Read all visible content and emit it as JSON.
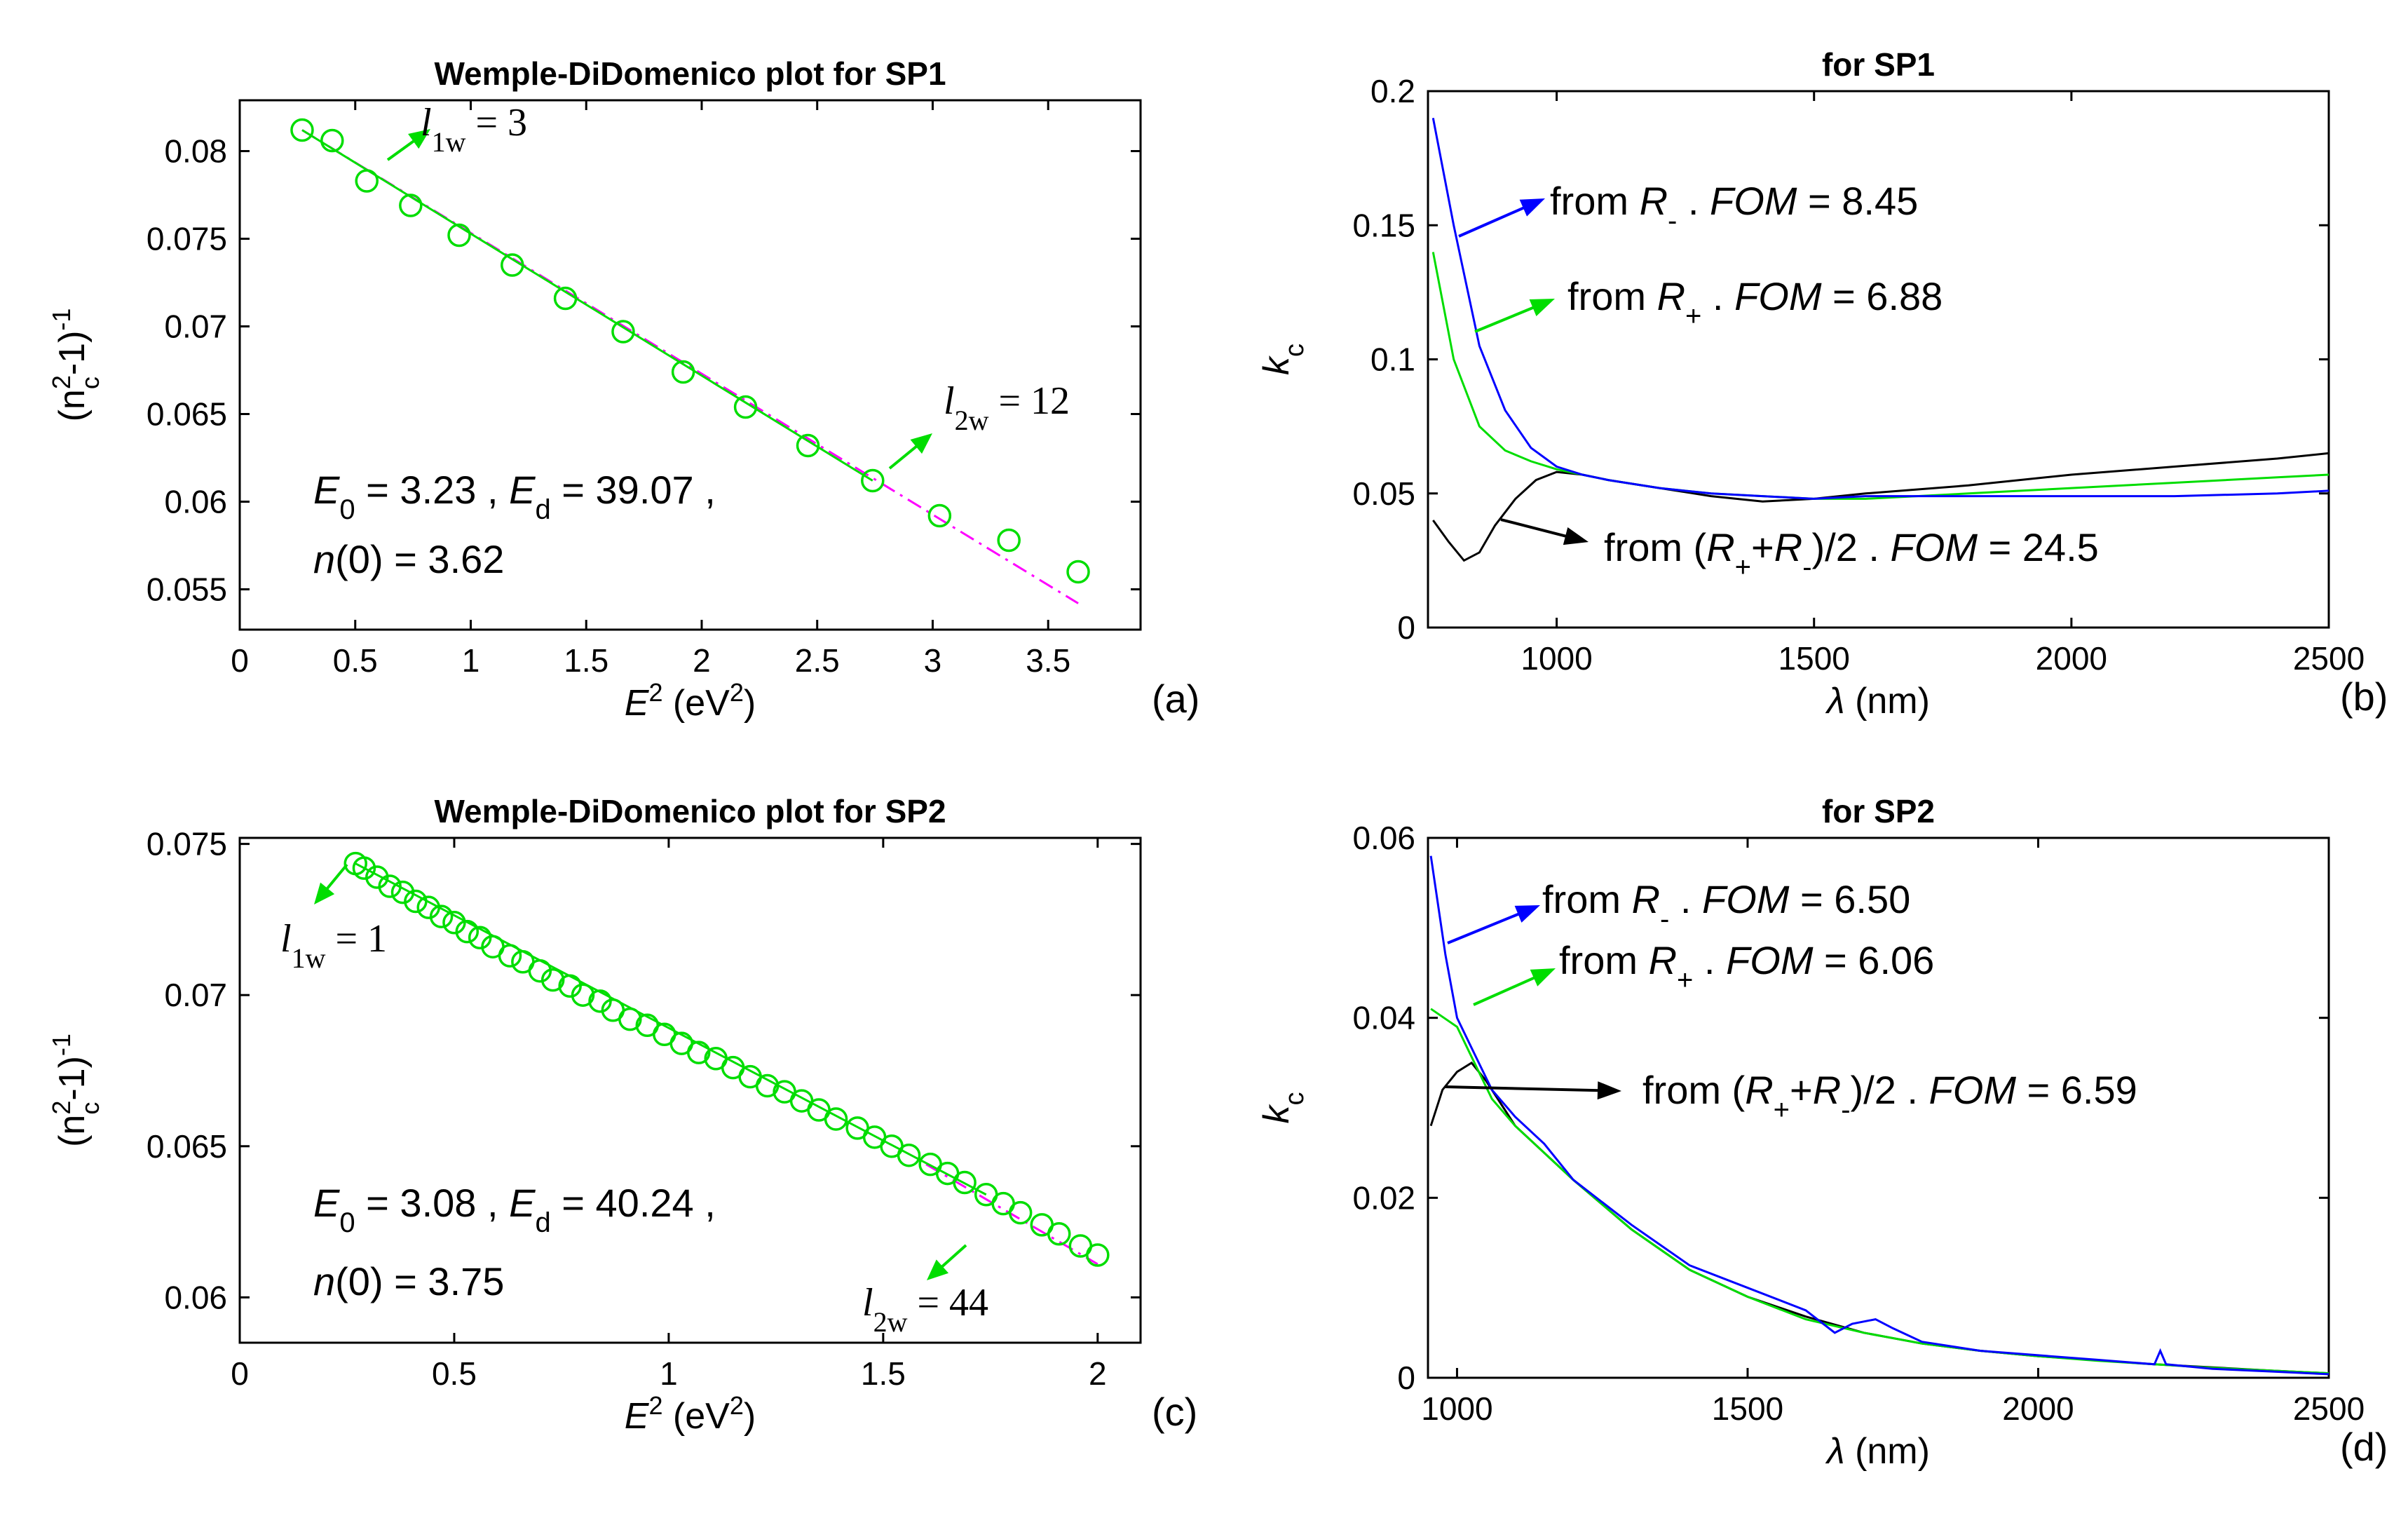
{
  "chart_data": [
    {
      "panel": "(a)",
      "type": "scatter",
      "title": "Wemple-DiDomenico plot for SP1",
      "xlabel": "E^2 (eV^2)",
      "ylabel": "(n_c^2-1)^-1",
      "xlim": [
        0,
        3.9
      ],
      "ylim": [
        0.0527,
        0.0829
      ],
      "xticks": [
        0,
        0.5,
        1,
        1.5,
        2,
        2.5,
        3,
        3.5
      ],
      "yticks": [
        0.055,
        0.06,
        0.065,
        0.07,
        0.075,
        0.08
      ],
      "xtick_labels": [
        "0",
        "0.5",
        "1",
        "1.5",
        "2",
        "2.5",
        "3",
        "3.5"
      ],
      "ytick_labels": [
        "0.055",
        "0.06",
        "0.065",
        "0.07",
        "0.075",
        "0.08"
      ],
      "points_x": [
        0.27,
        0.4,
        0.55,
        0.74,
        0.95,
        1.18,
        1.41,
        1.66,
        1.92,
        2.19,
        2.46,
        2.74,
        3.03,
        3.33,
        3.63
      ],
      "points_y": [
        0.0812,
        0.0806,
        0.0783,
        0.0769,
        0.0752,
        0.0735,
        0.0716,
        0.0697,
        0.0674,
        0.0654,
        0.0632,
        0.0612,
        0.0592,
        0.0578,
        0.056
      ],
      "fit_line": {
        "x": [
          0.27,
          2.74
        ],
        "y": [
          0.0812,
          0.0612
        ]
      },
      "extrap_line": {
        "x": [
          0.27,
          3.63
        ],
        "y": [
          0.0812,
          0.0542
        ]
      },
      "l1w": {
        "label": "l",
        "sub": "1w",
        "value": " = 3"
      },
      "l2w": {
        "label": "l",
        "sub": "2w",
        "value": " = 12"
      },
      "params": {
        "E0_sym": "E",
        "E0_sub": "0",
        "E0_val": " = 3.23 , ",
        "Ed_sym": "E",
        "Ed_sub": "d",
        "Ed_val": " = 39.07 ,",
        "n0_sym": "n",
        "n0_val": "(0) = 3.62"
      }
    },
    {
      "panel": "(b)",
      "type": "line",
      "title": "for SP1",
      "xlabel": "λ (nm)",
      "ylabel": "k_c",
      "xlim": [
        750,
        2500
      ],
      "ylim": [
        0,
        0.2
      ],
      "xticks": [
        1000,
        1500,
        2000,
        2500
      ],
      "yticks": [
        0,
        0.05,
        0.1,
        0.15,
        0.2
      ],
      "xtick_labels": [
        "1000",
        "1500",
        "2000",
        "2500"
      ],
      "ytick_labels": [
        "0",
        "0.05",
        "0.1",
        "0.15",
        "0.2"
      ],
      "series": [
        {
          "name": "from R-",
          "color": "#0000ff",
          "x": [
            760,
            800,
            850,
            900,
            950,
            1000,
            1050,
            1100,
            1200,
            1300,
            1400,
            1500,
            1600,
            1800,
            2000,
            2200,
            2400,
            2500
          ],
          "y": [
            0.19,
            0.15,
            0.105,
            0.081,
            0.067,
            0.06,
            0.057,
            0.055,
            0.052,
            0.05,
            0.049,
            0.048,
            0.049,
            0.049,
            0.049,
            0.049,
            0.05,
            0.051
          ]
        },
        {
          "name": "from R+",
          "color": "#00dd00",
          "x": [
            760,
            800,
            850,
            900,
            950,
            1000,
            1050,
            1100,
            1200,
            1300,
            1400,
            1500,
            1600,
            1800,
            2000,
            2200,
            2400,
            2500
          ],
          "y": [
            0.14,
            0.1,
            0.075,
            0.066,
            0.062,
            0.059,
            0.057,
            0.055,
            0.052,
            0.05,
            0.049,
            0.048,
            0.048,
            0.05,
            0.052,
            0.054,
            0.056,
            0.057
          ]
        },
        {
          "name": "from (R+ + R-)/2",
          "color": "#000000",
          "x": [
            760,
            790,
            820,
            850,
            880,
            920,
            960,
            1000,
            1050,
            1100,
            1200,
            1300,
            1400,
            1500,
            1600,
            1800,
            2000,
            2200,
            2400,
            2500
          ],
          "y": [
            0.04,
            0.032,
            0.025,
            0.028,
            0.038,
            0.048,
            0.055,
            0.058,
            0.057,
            0.055,
            0.052,
            0.049,
            0.047,
            0.048,
            0.05,
            0.053,
            0.057,
            0.06,
            0.063,
            0.065
          ]
        }
      ],
      "annotations": [
        {
          "prefix": "from ",
          "sym": "R",
          "sub": "-",
          "mid": " . ",
          "fom": "FOM",
          "val": " = 8.45",
          "color": "#0000ff"
        },
        {
          "prefix": "from ",
          "sym": "R",
          "sub": "+",
          "mid": " . ",
          "fom": "FOM",
          "val": " = 6.88",
          "color": "#00dd00"
        },
        {
          "prefix": "from (",
          "sym": "R",
          "sub": "+",
          "plus": "+",
          "sym2": "R",
          "sub2": "-",
          "tail": ")/2 . ",
          "fom": "FOM",
          "val": " = 24.5",
          "color": "#000000"
        }
      ]
    },
    {
      "panel": "(c)",
      "type": "scatter",
      "title": "Wemple-DiDomenico plot for SP2",
      "xlabel": "E^2 (eV^2)",
      "ylabel": "(n_c^2-1)^-1",
      "xlim": [
        0,
        2.1
      ],
      "ylim": [
        0.0585,
        0.0752
      ],
      "xticks": [
        0,
        0.5,
        1,
        1.5,
        2
      ],
      "yticks": [
        0.06,
        0.065,
        0.07,
        0.075
      ],
      "xtick_labels": [
        "0",
        "0.5",
        "1",
        "1.5",
        "2"
      ],
      "ytick_labels": [
        "0.06",
        "0.065",
        "0.07",
        "0.075"
      ],
      "points_x": [
        0.27,
        0.29,
        0.32,
        0.35,
        0.38,
        0.41,
        0.44,
        0.47,
        0.5,
        0.53,
        0.56,
        0.59,
        0.63,
        0.66,
        0.7,
        0.73,
        0.77,
        0.8,
        0.84,
        0.87,
        0.91,
        0.95,
        0.99,
        1.03,
        1.07,
        1.11,
        1.15,
        1.19,
        1.23,
        1.27,
        1.31,
        1.35,
        1.39,
        1.44,
        1.48,
        1.52,
        1.56,
        1.61,
        1.65,
        1.69,
        1.74,
        1.78,
        1.82,
        1.87,
        1.91,
        1.96,
        2.0
      ],
      "points_y": [
        0.07435,
        0.0742,
        0.0739,
        0.0736,
        0.0734,
        0.0731,
        0.0729,
        0.0726,
        0.0724,
        0.0721,
        0.0719,
        0.0716,
        0.0713,
        0.0711,
        0.0708,
        0.0705,
        0.0703,
        0.07,
        0.0698,
        0.0695,
        0.0692,
        0.069,
        0.0687,
        0.0684,
        0.0681,
        0.0679,
        0.0676,
        0.0673,
        0.067,
        0.0668,
        0.0665,
        0.0662,
        0.0659,
        0.0656,
        0.0653,
        0.065,
        0.0647,
        0.0644,
        0.0641,
        0.0638,
        0.0634,
        0.0631,
        0.0628,
        0.0624,
        0.0621,
        0.0617,
        0.0614
      ],
      "fit_line": {
        "x": [
          0.27,
          1.74
        ],
        "y": [
          0.07435,
          0.0634
        ]
      },
      "extrap_line": {
        "x": [
          1.6,
          2.0
        ],
        "y": [
          0.0644,
          0.0611
        ]
      },
      "l1w": {
        "label": "l",
        "sub": "1w",
        "value": " = 1"
      },
      "l2w": {
        "label": "l",
        "sub": "2w",
        "value": " = 44"
      },
      "params": {
        "E0_sym": "E",
        "E0_sub": "0",
        "E0_val": " = 3.08 , ",
        "Ed_sym": "E",
        "Ed_sub": "d",
        "Ed_val": " = 40.24 ,",
        "n0_sym": "n",
        "n0_val": "(0) = 3.75"
      }
    },
    {
      "panel": "(d)",
      "type": "line",
      "title": "for SP2",
      "xlabel": "λ (nm)",
      "ylabel": "k_c",
      "xlim": [
        950,
        2500
      ],
      "ylim": [
        0,
        0.06
      ],
      "xticks": [
        1000,
        1500,
        2000,
        2500
      ],
      "yticks": [
        0,
        0.02,
        0.04,
        0.06
      ],
      "xtick_labels": [
        "1000",
        "1500",
        "2000",
        "2500"
      ],
      "ytick_labels": [
        "0",
        "0.02",
        "0.04",
        "0.06"
      ],
      "series": [
        {
          "name": "from R-",
          "color": "#0000ff",
          "x": [
            955,
            980,
            1000,
            1030,
            1060,
            1100,
            1150,
            1200,
            1300,
            1400,
            1500,
            1600,
            1650,
            1680,
            1720,
            1750,
            1800,
            1900,
            2000,
            2100,
            2200,
            2210,
            2220,
            2300,
            2400,
            2500
          ],
          "y": [
            0.058,
            0.047,
            0.04,
            0.036,
            0.032,
            0.029,
            0.026,
            0.022,
            0.017,
            0.0125,
            0.01,
            0.0075,
            0.005,
            0.006,
            0.0065,
            0.0055,
            0.004,
            0.003,
            0.0025,
            0.002,
            0.0015,
            0.003,
            0.0015,
            0.001,
            0.0007,
            0.0004
          ]
        },
        {
          "name": "from R+",
          "color": "#00dd00",
          "x": [
            955,
            1000,
            1030,
            1060,
            1100,
            1150,
            1200,
            1300,
            1400,
            1500,
            1600,
            1700,
            1800,
            1900,
            2000,
            2100,
            2200,
            2300,
            2400,
            2500
          ],
          "y": [
            0.041,
            0.039,
            0.035,
            0.031,
            0.028,
            0.025,
            0.022,
            0.0165,
            0.012,
            0.009,
            0.0065,
            0.005,
            0.0038,
            0.003,
            0.0024,
            0.0019,
            0.0015,
            0.0011,
            0.0008,
            0.0005
          ]
        },
        {
          "name": "from (R+ + R-)/2",
          "color": "#000000",
          "x": [
            955,
            975,
            1000,
            1025,
            1050,
            1080,
            1100,
            1150,
            1200,
            1300,
            1400,
            1500,
            1600,
            1700,
            1800,
            1900,
            2000,
            2200,
            2400,
            2500
          ],
          "y": [
            0.028,
            0.032,
            0.034,
            0.035,
            0.033,
            0.03,
            0.028,
            0.025,
            0.022,
            0.0165,
            0.012,
            0.009,
            0.0068,
            0.005,
            0.0038,
            0.003,
            0.0024,
            0.0015,
            0.0008,
            0.0005
          ]
        }
      ],
      "annotations": [
        {
          "prefix": "from ",
          "sym": "R",
          "sub": "-",
          "mid": " . ",
          "fom": "FOM",
          "val": " = 6.50",
          "color": "#0000ff"
        },
        {
          "prefix": "from ",
          "sym": "R",
          "sub": "+",
          "mid": " . ",
          "fom": "FOM",
          "val": " = 6.06",
          "color": "#00dd00"
        },
        {
          "prefix": "from (",
          "sym": "R",
          "sub": "+",
          "plus": "+",
          "sym2": "R",
          "sub2": "-",
          "tail": ")/2 . ",
          "fom": "FOM",
          "val": " = 6.59",
          "color": "#000000"
        }
      ]
    }
  ]
}
